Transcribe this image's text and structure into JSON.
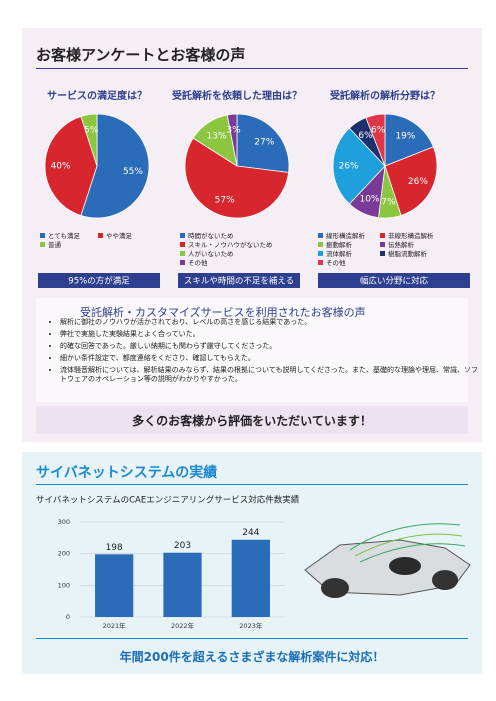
{
  "section1": {
    "title": "お客様アンケートとお客様の声",
    "voice_title": "受託解析・カスタマイズサービスを利用されたお客様の声",
    "voices": [
      "解析に御社のノウハウが活かされており、レベルの高さを感じる結果であった。",
      "弊社で実施した実験結果とよく合っていた。",
      "的確な回答であった。厳しい納期にも関わらず厳守してくださった。",
      "細かい条件設定で、都度連絡をくださり、確認してもらえた。",
      "流体騒音解析については、解析結果のみならず、結果の根拠についても説明してくださった。また、基礎的な理論や理屈、常識、ソフトウェアのオペレーション等の説明がわかりやすかった。"
    ],
    "banner": "多くのお客様から評価をいただいています！"
  },
  "section2": {
    "title": "サイバネットシステムの実績",
    "footer": "年間200件を超えるさまざまな解析案件に対応！"
  },
  "chart_data": [
    {
      "type": "pie",
      "title": "サービスの満足度は？",
      "caption": "95%の方が満足",
      "categories": [
        "とても満足",
        "やや満足",
        "普通"
      ],
      "values": [
        55,
        40,
        5
      ],
      "value_labels": [
        "55%",
        "40%",
        "5%"
      ],
      "colors": [
        "#2b6cb8",
        "#d8262e",
        "#8cc63e"
      ]
    },
    {
      "type": "pie",
      "title": "受託解析を依頼した理由は？",
      "caption": "スキルや時間の不足を補える",
      "categories": [
        "時間がないため",
        "スキル・ノウハウがないため",
        "人がいないため",
        "その他"
      ],
      "values": [
        27,
        57,
        13,
        3
      ],
      "value_labels": [
        "27%",
        "57%",
        "13%",
        "3%"
      ],
      "colors": [
        "#2b6cb8",
        "#d8262e",
        "#8cc63e",
        "#7a3a97"
      ]
    },
    {
      "type": "pie",
      "title": "受託解析の解析分野は？",
      "caption": "幅広い分野に対応",
      "categories": [
        "線形構造解析",
        "非線形構造解析",
        "振動解析",
        "伝熱解析",
        "流体解析",
        "樹脂流動解析",
        "その他"
      ],
      "values": [
        19,
        26,
        7,
        10,
        26,
        6,
        6
      ],
      "value_labels": [
        "19%",
        "26%",
        "7%",
        "10%",
        "26%",
        "6%",
        "6%"
      ],
      "colors": [
        "#2b6cb8",
        "#d8262e",
        "#8cc63e",
        "#7a3a97",
        "#1fa0dc",
        "#1d2f6e",
        "#e0364a"
      ]
    },
    {
      "type": "bar",
      "title": "サイバネットシステムのCAEエンジニアリングサービス対応件数実績",
      "categories": [
        "2021年",
        "2022年",
        "2023年"
      ],
      "values": [
        198,
        203,
        244
      ],
      "color": "#2b6cb8",
      "ylim": [
        0,
        300
      ],
      "yticks": [
        0,
        100,
        200,
        300
      ],
      "grid": true
    }
  ]
}
